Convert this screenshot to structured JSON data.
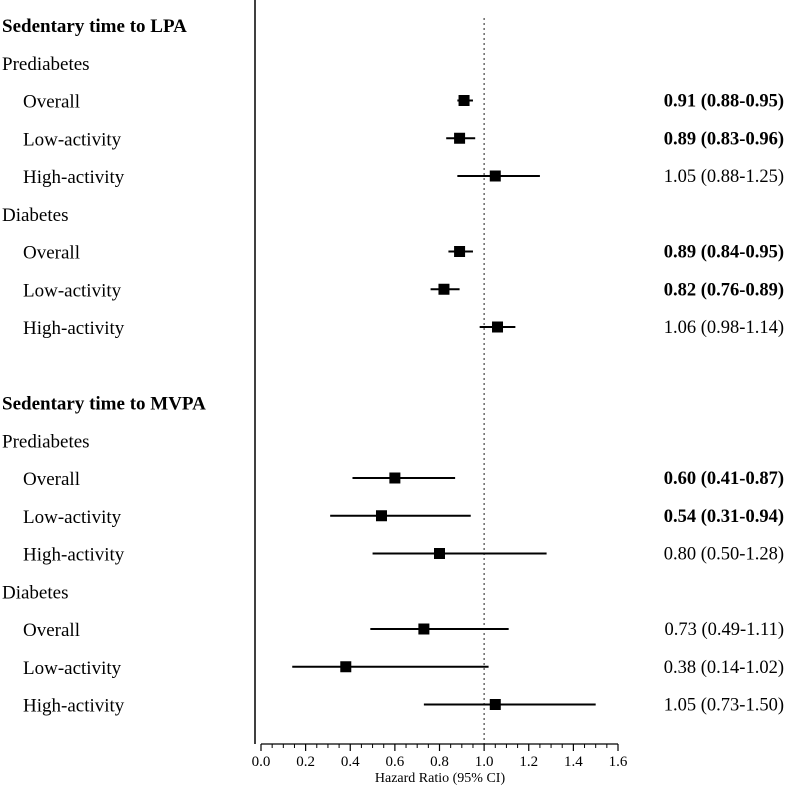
{
  "chart_data": {
    "type": "forest",
    "xlabel": "Hazard Ratio (95% CI)",
    "xlim": [
      0.0,
      1.6
    ],
    "xticks": [
      "0.0",
      "0.2",
      "0.4",
      "0.6",
      "0.8",
      "1.0",
      "1.2",
      "1.4",
      "1.6"
    ],
    "reference_line": 1.0,
    "rows": [
      {
        "kind": "section",
        "label": "Sedentary time to LPA"
      },
      {
        "kind": "group",
        "label": "Prediabetes"
      },
      {
        "kind": "item",
        "label": "Overall",
        "hr": 0.91,
        "lo": 0.88,
        "hi": 0.95,
        "text_hr": "0.91",
        "text_ci": "(0.88-0.95)",
        "significant": true
      },
      {
        "kind": "item",
        "label": "Low-activity",
        "hr": 0.89,
        "lo": 0.83,
        "hi": 0.96,
        "text_hr": "0.89",
        "text_ci": "(0.83-0.96)",
        "significant": true
      },
      {
        "kind": "item",
        "label": "High-activity",
        "hr": 1.05,
        "lo": 0.88,
        "hi": 1.25,
        "text_hr": "1.05",
        "text_ci": "(0.88-1.25)",
        "significant": false
      },
      {
        "kind": "group",
        "label": "Diabetes"
      },
      {
        "kind": "item",
        "label": "Overall",
        "hr": 0.89,
        "lo": 0.84,
        "hi": 0.95,
        "text_hr": "0.89",
        "text_ci": "(0.84-0.95)",
        "significant": true
      },
      {
        "kind": "item",
        "label": "Low-activity",
        "hr": 0.82,
        "lo": 0.76,
        "hi": 0.89,
        "text_hr": "0.82",
        "text_ci": "(0.76-0.89)",
        "significant": true
      },
      {
        "kind": "item",
        "label": "High-activity",
        "hr": 1.06,
        "lo": 0.98,
        "hi": 1.14,
        "text_hr": "1.06",
        "text_ci": "(0.98-1.14)",
        "significant": false
      },
      {
        "kind": "spacer"
      },
      {
        "kind": "section",
        "label": "Sedentary time to MVPA"
      },
      {
        "kind": "group",
        "label": "Prediabetes"
      },
      {
        "kind": "item",
        "label": "Overall",
        "hr": 0.6,
        "lo": 0.41,
        "hi": 0.87,
        "text_hr": "0.60",
        "text_ci": "(0.41-0.87)",
        "significant": true
      },
      {
        "kind": "item",
        "label": "Low-activity",
        "hr": 0.54,
        "lo": 0.31,
        "hi": 0.94,
        "text_hr": "0.54",
        "text_ci": "(0.31-0.94)",
        "significant": true
      },
      {
        "kind": "item",
        "label": "High-activity",
        "hr": 0.8,
        "lo": 0.5,
        "hi": 1.28,
        "text_hr": "0.80",
        "text_ci": "(0.50-1.28)",
        "significant": false
      },
      {
        "kind": "group",
        "label": "Diabetes"
      },
      {
        "kind": "item",
        "label": "Overall",
        "hr": 0.73,
        "lo": 0.49,
        "hi": 1.11,
        "text_hr": "0.73",
        "text_ci": "(0.49-1.11)",
        "significant": false
      },
      {
        "kind": "item",
        "label": "Low-activity",
        "hr": 0.38,
        "lo": 0.14,
        "hi": 1.02,
        "text_hr": "0.38",
        "text_ci": "(0.14-1.02)",
        "significant": false
      },
      {
        "kind": "item",
        "label": "High-activity",
        "hr": 1.05,
        "lo": 0.73,
        "hi": 1.5,
        "text_hr": "1.05",
        "text_ci": "(0.73-1.50)",
        "significant": false
      }
    ]
  }
}
